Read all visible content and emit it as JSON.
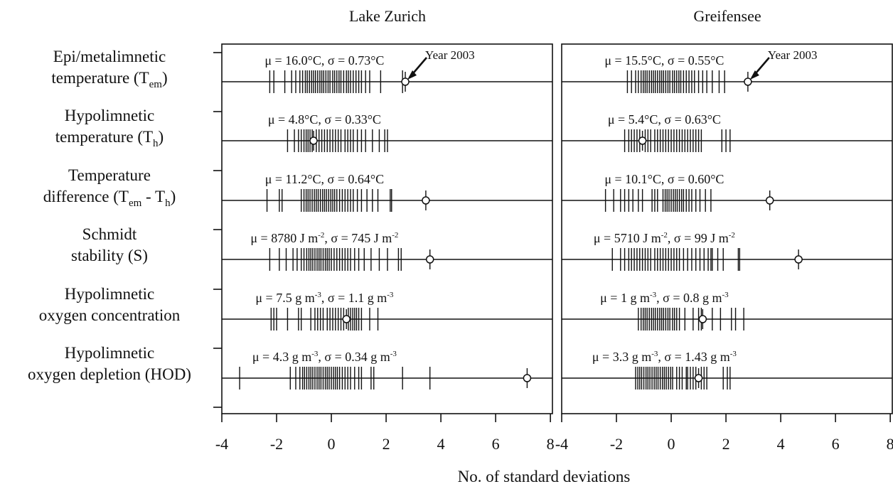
{
  "chart_data": {
    "type": "strip",
    "xlabel": "No. of standard deviations",
    "xlim": [
      -4,
      8.1
    ],
    "xticks": [
      -4,
      -2,
      0,
      2,
      4,
      6,
      8
    ],
    "rows": [
      {
        "label_lines": [
          {
            "text": "Epi/metalimnetic"
          },
          {
            "text": "temperature (T",
            "sub": "em",
            "tail": ")"
          }
        ]
      },
      {
        "label_lines": [
          {
            "text": "Hypolimnetic"
          },
          {
            "text": "temperature (T",
            "sub": "h",
            "tail": ")"
          }
        ]
      },
      {
        "label_lines": [
          {
            "text": "Temperature"
          },
          {
            "text": "difference (T",
            "sub": "em",
            "tail": " - T",
            "sub2": "h",
            "tail2": ")"
          }
        ]
      },
      {
        "label_lines": [
          {
            "text": "Schmidt"
          },
          {
            "text": "stability (S)"
          }
        ]
      },
      {
        "label_lines": [
          {
            "text": "Hypolimnetic"
          },
          {
            "text": "oxygen concentration"
          }
        ]
      },
      {
        "label_lines": [
          {
            "text": "Hypolimnetic"
          },
          {
            "text": "oxygen depletion (HOD)"
          }
        ]
      }
    ],
    "panels": [
      {
        "title": "Lake Zurich",
        "rows": [
          {
            "stat": [
              {
                "t": "μ = 16.0°C, σ = 0.73°C"
              }
            ],
            "highlight": 2.7,
            "annotation": "Year 2003",
            "values": [
              -2.25,
              -2.1,
              -1.7,
              -1.45,
              -1.3,
              -1.15,
              -1.05,
              -0.95,
              -0.88,
              -0.8,
              -0.72,
              -0.65,
              -0.58,
              -0.5,
              -0.42,
              -0.35,
              -0.28,
              -0.2,
              -0.12,
              -0.05,
              0.05,
              0.12,
              0.2,
              0.28,
              0.35,
              0.45,
              0.55,
              0.62,
              0.7,
              0.8,
              0.9,
              1.0,
              1.1,
              1.25,
              1.4,
              1.8,
              2.6
            ]
          },
          {
            "stat": [
              {
                "t": "μ = 4.8°C, σ = 0.33°C"
              }
            ],
            "highlight": -0.65,
            "values": [
              -1.6,
              -1.35,
              -1.2,
              -1.1,
              -1.0,
              -0.92,
              -0.85,
              -0.78,
              -0.7,
              -0.55,
              -0.45,
              -0.35,
              -0.25,
              -0.15,
              -0.05,
              0.05,
              0.15,
              0.25,
              0.35,
              0.5,
              0.6,
              0.7,
              0.8,
              0.95,
              1.1,
              1.25,
              1.5,
              1.75,
              1.95,
              2.05
            ]
          },
          {
            "stat": [
              {
                "t": "μ = 11.2°C, σ = 0.64°C"
              }
            ],
            "highlight": 3.45,
            "values": [
              -2.35,
              -1.9,
              -1.8,
              -1.1,
              -1.0,
              -0.92,
              -0.85,
              -0.78,
              -0.7,
              -0.62,
              -0.55,
              -0.48,
              -0.4,
              -0.32,
              -0.25,
              -0.18,
              -0.1,
              -0.02,
              0.05,
              0.12,
              0.2,
              0.3,
              0.4,
              0.5,
              0.6,
              0.7,
              0.8,
              0.95,
              1.1,
              1.3,
              1.5,
              1.7,
              2.15,
              2.2
            ]
          },
          {
            "stat": [
              {
                "t": "μ = 8780 J m"
              },
              {
                "t": "-2",
                "sup": true
              },
              {
                "t": ", σ = 745 J m"
              },
              {
                "t": "-2",
                "sup": true
              }
            ],
            "highlight": 3.6,
            "values": [
              -2.25,
              -1.9,
              -1.65,
              -1.4,
              -1.25,
              -1.1,
              -1.0,
              -0.9,
              -0.82,
              -0.75,
              -0.68,
              -0.6,
              -0.52,
              -0.45,
              -0.38,
              -0.3,
              -0.22,
              -0.15,
              -0.08,
              0.0,
              0.1,
              0.2,
              0.3,
              0.4,
              0.5,
              0.6,
              0.7,
              0.85,
              1.0,
              1.2,
              1.45,
              1.75,
              2.05,
              2.45,
              2.55
            ]
          },
          {
            "stat": [
              {
                "t": "μ = 7.5 g m"
              },
              {
                "t": "-3",
                "sup": true
              },
              {
                "t": ", σ = 1.1 g m"
              },
              {
                "t": "-3",
                "sup": true
              }
            ],
            "highlight": 0.55,
            "values": [
              -2.2,
              -2.1,
              -2.0,
              -1.6,
              -1.2,
              -1.1,
              -0.75,
              -0.6,
              -0.5,
              -0.4,
              -0.3,
              -0.15,
              -0.05,
              0.05,
              0.15,
              0.25,
              0.35,
              0.45,
              0.62,
              0.7,
              0.78,
              0.85,
              0.92,
              1.0,
              1.1,
              1.4,
              1.7
            ]
          },
          {
            "stat": [
              {
                "t": "μ = 4.3 g m"
              },
              {
                "t": "-3",
                "sup": true
              },
              {
                "t": ", σ = 0.34 g m"
              },
              {
                "t": "-3",
                "sup": true
              }
            ],
            "highlight": 7.15,
            "values": [
              -3.35,
              -1.5,
              -1.3,
              -1.15,
              -1.05,
              -0.98,
              -0.9,
              -0.82,
              -0.75,
              -0.68,
              -0.6,
              -0.52,
              -0.45,
              -0.38,
              -0.3,
              -0.22,
              -0.15,
              -0.08,
              0.0,
              0.08,
              0.15,
              0.22,
              0.3,
              0.4,
              0.5,
              0.6,
              0.7,
              0.85,
              1.0,
              1.1,
              1.45,
              1.55,
              2.6,
              3.6
            ]
          }
        ]
      },
      {
        "title": "Greifensee",
        "rows": [
          {
            "stat": [
              {
                "t": "μ = 15.5°C, σ = 0.55°C"
              }
            ],
            "highlight": 2.8,
            "annotation": "Year 2003",
            "values": [
              -1.6,
              -1.45,
              -1.3,
              -1.2,
              -1.1,
              -1.02,
              -0.95,
              -0.88,
              -0.8,
              -0.72,
              -0.65,
              -0.58,
              -0.5,
              -0.42,
              -0.35,
              -0.28,
              -0.2,
              -0.12,
              -0.05,
              0.05,
              0.12,
              0.2,
              0.28,
              0.35,
              0.45,
              0.55,
              0.65,
              0.75,
              0.85,
              1.0,
              1.15,
              1.3,
              1.5,
              1.75,
              1.95
            ]
          },
          {
            "stat": [
              {
                "t": "μ = 5.4°C, σ = 0.63°C"
              }
            ],
            "highlight": -1.05,
            "values": [
              -1.7,
              -1.55,
              -1.45,
              -1.35,
              -1.25,
              -1.15,
              -0.95,
              -0.85,
              -0.75,
              -0.6,
              -0.5,
              -0.4,
              -0.3,
              -0.2,
              -0.1,
              0.0,
              0.1,
              0.2,
              0.3,
              0.4,
              0.5,
              0.6,
              0.7,
              0.8,
              0.9,
              1.0,
              1.1,
              1.85,
              2.0,
              2.15
            ]
          },
          {
            "stat": [
              {
                "t": "μ = 10.1°C, σ = 0.60°C"
              }
            ],
            "highlight": 3.6,
            "values": [
              -2.4,
              -2.1,
              -1.85,
              -1.7,
              -1.55,
              -1.4,
              -1.2,
              -1.05,
              -0.7,
              -0.6,
              -0.5,
              -0.3,
              -0.22,
              -0.15,
              -0.08,
              0.0,
              0.08,
              0.15,
              0.22,
              0.3,
              0.38,
              0.45,
              0.55,
              0.65,
              0.75,
              0.9,
              1.05,
              1.25,
              1.45
            ]
          },
          {
            "stat": [
              {
                "t": "μ = 5710 J m"
              },
              {
                "t": "-2",
                "sup": true
              },
              {
                "t": ", σ = 99 J m"
              },
              {
                "t": "-2",
                "sup": true
              }
            ],
            "highlight": 4.65,
            "values": [
              -2.15,
              -1.85,
              -1.7,
              -1.55,
              -1.45,
              -1.35,
              -1.25,
              -1.15,
              -1.05,
              -0.95,
              -0.85,
              -0.75,
              -0.6,
              -0.5,
              -0.4,
              -0.3,
              -0.2,
              -0.1,
              0.0,
              0.1,
              0.2,
              0.3,
              0.45,
              0.6,
              0.75,
              0.9,
              1.05,
              1.2,
              1.35,
              1.45,
              1.5,
              1.7,
              1.9,
              2.45,
              2.5
            ]
          },
          {
            "stat": [
              {
                "t": "μ = 1 g m"
              },
              {
                "t": "-3",
                "sup": true
              },
              {
                "t": ", σ = 0.8 g m"
              },
              {
                "t": "-3",
                "sup": true
              }
            ],
            "highlight": 1.15,
            "values": [
              -1.2,
              -1.1,
              -1.02,
              -0.95,
              -0.88,
              -0.8,
              -0.72,
              -0.65,
              -0.58,
              -0.5,
              -0.42,
              -0.35,
              -0.28,
              -0.2,
              -0.12,
              -0.05,
              0.05,
              0.12,
              0.2,
              0.3,
              0.5,
              0.8,
              1.0,
              1.1,
              1.5,
              1.8,
              2.2,
              2.35,
              2.65
            ]
          },
          {
            "stat": [
              {
                "t": "μ = 3.3 g m"
              },
              {
                "t": "-3",
                "sup": true
              },
              {
                "t": ", σ = 1.43 g m"
              },
              {
                "t": "-3",
                "sup": true
              }
            ],
            "highlight": 1.0,
            "values": [
              -1.3,
              -1.22,
              -1.15,
              -1.08,
              -1.0,
              -0.92,
              -0.85,
              -0.78,
              -0.7,
              -0.62,
              -0.55,
              -0.48,
              -0.4,
              -0.32,
              -0.25,
              -0.18,
              -0.1,
              -0.02,
              0.05,
              0.2,
              0.3,
              0.4,
              0.55,
              0.6,
              0.7,
              0.8,
              0.9,
              1.1,
              1.2,
              1.3,
              1.9,
              2.05,
              2.15
            ]
          }
        ]
      }
    ]
  }
}
